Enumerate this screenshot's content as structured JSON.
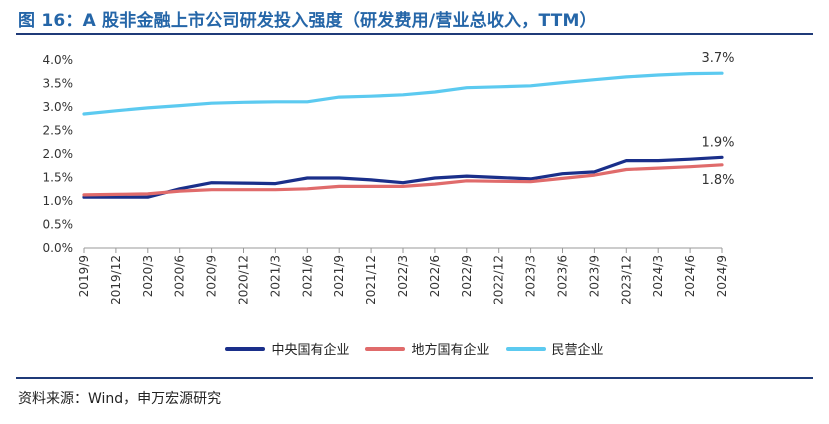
{
  "title": "图 16：A 股非金融上市公司研发投入强度（研发费用/营业总收入，TTM）",
  "source": "资料来源：Wind，申万宏源研究",
  "chart_data": {
    "type": "line",
    "title": "图 16：A 股非金融上市公司研发投入强度（研发费用/营业总收入，TTM）",
    "xlabel": "",
    "ylabel": "",
    "ylim": [
      0,
      4.0
    ],
    "yticks": [
      "0.0%",
      "0.5%",
      "1.0%",
      "1.5%",
      "2.0%",
      "2.5%",
      "3.0%",
      "3.5%",
      "4.0%"
    ],
    "categories": [
      "2019/9",
      "2019/12",
      "2020/3",
      "2020/6",
      "2020/9",
      "2020/12",
      "2021/3",
      "2021/6",
      "2021/9",
      "2021/12",
      "2022/3",
      "2022/6",
      "2022/9",
      "2022/12",
      "2023/3",
      "2023/6",
      "2023/9",
      "2023/12",
      "2024/3",
      "2024/6",
      "2024/9"
    ],
    "series": [
      {
        "name": "中央国有企业",
        "color": "#1a2f8a",
        "end_label": "1.9%",
        "values": [
          1.08,
          1.08,
          1.08,
          1.26,
          1.39,
          1.38,
          1.37,
          1.49,
          1.49,
          1.45,
          1.39,
          1.49,
          1.53,
          1.5,
          1.47,
          1.58,
          1.62,
          1.86,
          1.86,
          1.89,
          1.93
        ]
      },
      {
        "name": "地方国有企业",
        "color": "#e06b6b",
        "end_label": "1.8%",
        "values": [
          1.13,
          1.14,
          1.15,
          1.21,
          1.24,
          1.24,
          1.24,
          1.26,
          1.31,
          1.31,
          1.31,
          1.36,
          1.43,
          1.42,
          1.41,
          1.48,
          1.55,
          1.67,
          1.7,
          1.73,
          1.77
        ]
      },
      {
        "name": "民营企业",
        "color": "#5ccaf0",
        "end_label": "3.7%",
        "values": [
          2.85,
          2.92,
          2.98,
          3.03,
          3.08,
          3.1,
          3.11,
          3.11,
          3.21,
          3.23,
          3.26,
          3.32,
          3.41,
          3.43,
          3.45,
          3.52,
          3.58,
          3.64,
          3.68,
          3.71,
          3.72
        ]
      }
    ],
    "legend_position": "bottom"
  }
}
